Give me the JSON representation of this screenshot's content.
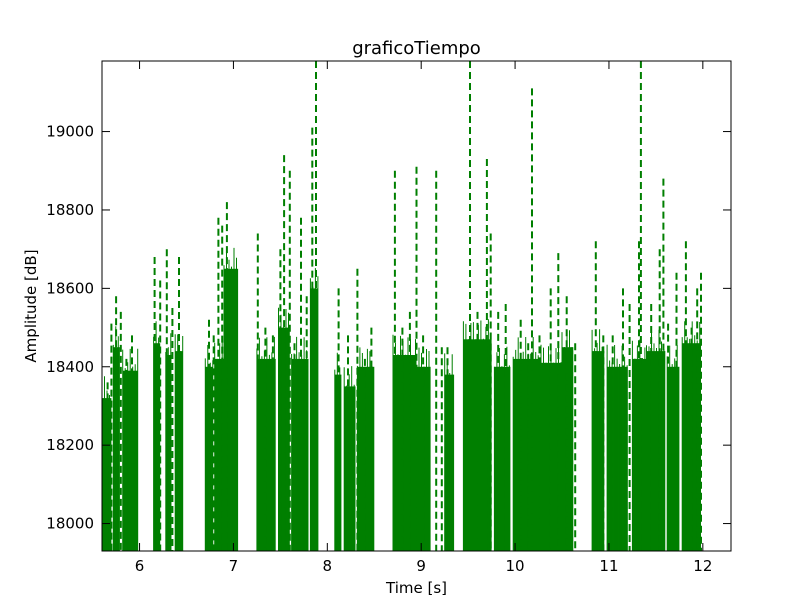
{
  "chart_data": {
    "type": "line",
    "title": "graficoTiempo",
    "xlabel": "Time [s]",
    "ylabel": "Amplitude [dB]",
    "xlim": [
      5.6,
      12.3
    ],
    "ylim": [
      17930,
      19180
    ],
    "xticks": [
      6,
      7,
      8,
      9,
      10,
      11,
      12
    ],
    "xtick_labels": [
      "6",
      "7",
      "8",
      "9",
      "10",
      "11",
      "12"
    ],
    "yticks": [
      18000,
      18200,
      18400,
      18600,
      18800,
      19000
    ],
    "ytick_labels": [
      "18000",
      "18200",
      "18400",
      "18600",
      "18800",
      "19000"
    ],
    "grid": false,
    "legend": "none",
    "series_color": "#007f00",
    "series": [
      {
        "style": "solid",
        "segments": [
          [
            5.6,
            5.7,
            18320
          ],
          [
            5.72,
            5.79,
            18450
          ],
          [
            5.82,
            5.98,
            18390
          ],
          [
            6.15,
            6.22,
            18460
          ],
          [
            6.28,
            6.34,
            18430
          ],
          [
            6.38,
            6.46,
            18440
          ],
          [
            6.7,
            6.78,
            18400
          ],
          [
            6.8,
            6.9,
            18420
          ],
          [
            6.9,
            7.05,
            18650
          ],
          [
            7.25,
            7.45,
            18420
          ],
          [
            7.48,
            7.6,
            18500
          ],
          [
            7.62,
            7.8,
            18420
          ],
          [
            7.82,
            7.9,
            18600
          ],
          [
            8.08,
            8.15,
            18380
          ],
          [
            8.18,
            8.3,
            18350
          ],
          [
            8.32,
            8.5,
            18400
          ],
          [
            8.7,
            8.95,
            18430
          ],
          [
            8.95,
            9.1,
            18400
          ],
          [
            9.25,
            9.35,
            18380
          ],
          [
            9.45,
            9.75,
            18470
          ],
          [
            9.78,
            9.95,
            18400
          ],
          [
            9.98,
            10.25,
            18420
          ],
          [
            10.25,
            10.5,
            18410
          ],
          [
            10.5,
            10.62,
            18450
          ],
          [
            10.82,
            10.95,
            18440
          ],
          [
            10.98,
            11.2,
            18400
          ],
          [
            11.25,
            11.4,
            18420
          ],
          [
            11.4,
            11.6,
            18440
          ],
          [
            11.62,
            11.75,
            18400
          ],
          [
            11.78,
            11.98,
            18460
          ]
        ]
      },
      {
        "style": "dashed",
        "spikes": [
          [
            5.62,
            18310
          ],
          [
            5.66,
            18360
          ],
          [
            5.7,
            18510
          ],
          [
            5.75,
            18580
          ],
          [
            5.8,
            18540
          ],
          [
            5.86,
            18420
          ],
          [
            5.92,
            18480
          ],
          [
            5.96,
            18350
          ],
          [
            6.16,
            18680
          ],
          [
            6.22,
            18620
          ],
          [
            6.29,
            18700
          ],
          [
            6.35,
            18550
          ],
          [
            6.42,
            18680
          ],
          [
            6.74,
            18520
          ],
          [
            6.79,
            18480
          ],
          [
            6.84,
            18780
          ],
          [
            6.88,
            18760
          ],
          [
            6.93,
            18820
          ],
          [
            6.98,
            18600
          ],
          [
            7.26,
            18740
          ],
          [
            7.34,
            18500
          ],
          [
            7.42,
            18480
          ],
          [
            7.5,
            18700
          ],
          [
            7.54,
            18940
          ],
          [
            7.6,
            18900
          ],
          [
            7.65,
            18460
          ],
          [
            7.72,
            18780
          ],
          [
            7.78,
            18580
          ],
          [
            7.84,
            19010
          ],
          [
            7.88,
            19180
          ],
          [
            8.12,
            18600
          ],
          [
            8.22,
            18480
          ],
          [
            8.32,
            18650
          ],
          [
            8.4,
            18420
          ],
          [
            8.47,
            18500
          ],
          [
            8.72,
            18900
          ],
          [
            8.8,
            18500
          ],
          [
            8.88,
            18540
          ],
          [
            8.95,
            18910
          ],
          [
            9.02,
            18480
          ],
          [
            9.16,
            18900
          ],
          [
            9.22,
            18450
          ],
          [
            9.28,
            18450
          ],
          [
            9.52,
            19180
          ],
          [
            9.6,
            18540
          ],
          [
            9.7,
            18930
          ],
          [
            9.74,
            18740
          ],
          [
            9.82,
            18540
          ],
          [
            9.9,
            18560
          ],
          [
            10.06,
            18520
          ],
          [
            10.14,
            18460
          ],
          [
            10.18,
            19110
          ],
          [
            10.26,
            18480
          ],
          [
            10.38,
            18600
          ],
          [
            10.46,
            18690
          ],
          [
            10.55,
            18580
          ],
          [
            10.64,
            18460
          ],
          [
            10.86,
            18720
          ],
          [
            10.94,
            18480
          ],
          [
            11.04,
            18480
          ],
          [
            11.15,
            18600
          ],
          [
            11.22,
            18560
          ],
          [
            11.32,
            18720
          ],
          [
            11.34,
            19180
          ],
          [
            11.45,
            18560
          ],
          [
            11.54,
            18700
          ],
          [
            11.58,
            18880
          ],
          [
            11.63,
            18510
          ],
          [
            11.72,
            18640
          ],
          [
            11.82,
            18720
          ],
          [
            11.88,
            18500
          ],
          [
            11.94,
            18600
          ],
          [
            11.98,
            18640
          ]
        ]
      }
    ]
  }
}
